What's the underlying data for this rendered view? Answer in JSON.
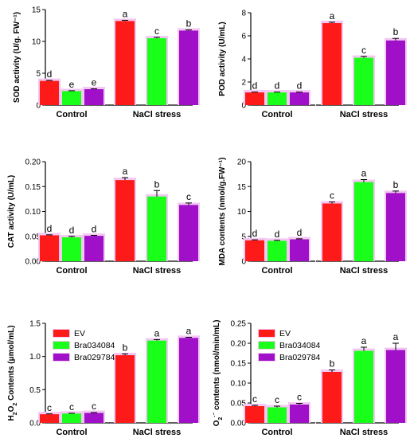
{
  "colors": {
    "EV": "#ff1a1a",
    "Bra034084": "#1aff1a",
    "Bra029784": "#a010c8",
    "halo": "#f3c8f3",
    "axis": "#000000"
  },
  "chart_data": [
    {
      "type": "bar",
      "panel": "SOD",
      "ylabel": "SOD activity (U/g. FW⁻¹)",
      "ylim": [
        0,
        15
      ],
      "yticks": [
        "0",
        "5",
        "10",
        "15"
      ],
      "categories": [
        "Control",
        "NaCl stress"
      ],
      "series": [
        {
          "name": "EV",
          "values": [
            3.8,
            13.2
          ],
          "errors": [
            0.08,
            0.12
          ],
          "letters": [
            "d",
            "a"
          ]
        },
        {
          "name": "Bra034084",
          "values": [
            2.2,
            10.5
          ],
          "errors": [
            0.06,
            0.15
          ],
          "letters": [
            "e",
            "c"
          ]
        },
        {
          "name": "Bra029784",
          "values": [
            2.5,
            11.7
          ],
          "errors": [
            0.06,
            0.1
          ],
          "letters": [
            "e",
            "b"
          ]
        }
      ]
    },
    {
      "type": "bar",
      "panel": "POD",
      "ylabel": "POD activity (U/mL)",
      "ylim": [
        0,
        8
      ],
      "yticks": [
        "0",
        "2",
        "4",
        "6",
        "8"
      ],
      "categories": [
        "Control",
        "NaCl stress"
      ],
      "series": [
        {
          "name": "EV",
          "values": [
            1.1,
            7.1
          ],
          "errors": [
            0.03,
            0.08
          ],
          "letters": [
            "d",
            "a"
          ]
        },
        {
          "name": "Bra034084",
          "values": [
            1.1,
            4.1
          ],
          "errors": [
            0.03,
            0.12
          ],
          "letters": [
            "d",
            "c"
          ]
        },
        {
          "name": "Bra029784",
          "values": [
            1.1,
            5.6
          ],
          "errors": [
            0.03,
            0.18
          ],
          "letters": [
            "d",
            "b"
          ]
        }
      ]
    },
    {
      "type": "bar",
      "panel": "CAT",
      "ylabel": "CAT activity (U/mL)",
      "ylim": [
        0,
        0.2
      ],
      "yticks": [
        "0.00",
        "0.05",
        "0.10",
        "0.15",
        "0.20"
      ],
      "categories": [
        "Control",
        "NaCl stress"
      ],
      "series": [
        {
          "name": "EV",
          "values": [
            0.052,
            0.163
          ],
          "errors": [
            0.001,
            0.005
          ],
          "letters": [
            "d",
            "a"
          ]
        },
        {
          "name": "Bra034084",
          "values": [
            0.048,
            0.13
          ],
          "errors": [
            0.002,
            0.012
          ],
          "letters": [
            "d",
            "b"
          ]
        },
        {
          "name": "Bra029784",
          "values": [
            0.051,
            0.113
          ],
          "errors": [
            0.001,
            0.004
          ],
          "letters": [
            "d",
            "c"
          ]
        }
      ]
    },
    {
      "type": "bar",
      "panel": "MDA",
      "ylabel": "MDA contents (nmol/g.FW⁻¹)",
      "ylim": [
        0,
        20
      ],
      "yticks": [
        "0",
        "5",
        "10",
        "15",
        "20"
      ],
      "categories": [
        "Control",
        "NaCl stress"
      ],
      "series": [
        {
          "name": "EV",
          "values": [
            4.2,
            11.6
          ],
          "errors": [
            0.1,
            0.3
          ],
          "letters": [
            "d",
            "c"
          ]
        },
        {
          "name": "Bra034084",
          "values": [
            4.1,
            15.9
          ],
          "errors": [
            0.1,
            0.5
          ],
          "letters": [
            "d",
            "a"
          ]
        },
        {
          "name": "Bra029784",
          "values": [
            4.4,
            13.7
          ],
          "errors": [
            0.1,
            0.4
          ],
          "letters": [
            "d",
            "b"
          ]
        }
      ]
    },
    {
      "type": "bar",
      "panel": "H2O2",
      "ylabel_parts": [
        "H",
        "2",
        "O",
        "2",
        " Contents (μmol/mL)"
      ],
      "ylim": [
        0,
        1.5
      ],
      "yticks": [
        "0.0",
        "0.5",
        "1.0",
        "1.5"
      ],
      "categories": [
        "Control",
        "NaCl stress"
      ],
      "legend": [
        "EV",
        "Bra034084",
        "Bra029784"
      ],
      "series": [
        {
          "name": "EV",
          "values": [
            0.13,
            1.02
          ],
          "errors": [
            0.005,
            0.02
          ],
          "letters": [
            "c",
            "b"
          ]
        },
        {
          "name": "Bra034084",
          "values": [
            0.14,
            1.24
          ],
          "errors": [
            0.005,
            0.015
          ],
          "letters": [
            "c",
            "a"
          ]
        },
        {
          "name": "Bra029784",
          "values": [
            0.15,
            1.28
          ],
          "errors": [
            0.005,
            0.01
          ],
          "letters": [
            "c",
            "a"
          ]
        }
      ]
    },
    {
      "type": "bar",
      "panel": "O2",
      "ylabel_parts": [
        "O",
        "2",
        "·⁻",
        " contents (nmol/min/mL)"
      ],
      "ylim": [
        0,
        0.25
      ],
      "yticks": [
        "0.00",
        "0.05",
        "0.10",
        "0.15",
        "0.20",
        "0.25"
      ],
      "categories": [
        "Control",
        "NaCl stress"
      ],
      "legend": [
        "EV",
        "Bra034084",
        "Bra029784"
      ],
      "series": [
        {
          "name": "EV",
          "values": [
            0.042,
            0.128
          ],
          "errors": [
            0.002,
            0.005
          ],
          "letters": [
            "c",
            "b"
          ]
        },
        {
          "name": "Bra034084",
          "values": [
            0.039,
            0.181
          ],
          "errors": [
            0.003,
            0.009
          ],
          "letters": [
            "c",
            "a"
          ]
        },
        {
          "name": "Bra029784",
          "values": [
            0.046,
            0.183
          ],
          "errors": [
            0.003,
            0.017
          ],
          "letters": [
            "c",
            "a"
          ]
        }
      ]
    }
  ]
}
